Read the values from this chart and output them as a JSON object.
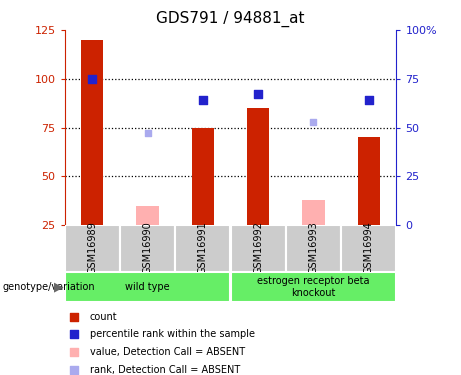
{
  "title": "GDS791 / 94881_at",
  "samples": [
    "GSM16989",
    "GSM16990",
    "GSM16991",
    "GSM16992",
    "GSM16993",
    "GSM16994"
  ],
  "red_bars": [
    120,
    null,
    75,
    85,
    null,
    70
  ],
  "pink_bars": [
    null,
    35,
    null,
    null,
    38,
    null
  ],
  "blue_squares_left": [
    100,
    null,
    89,
    92,
    null,
    89
  ],
  "lightblue_squares_left": [
    null,
    72,
    null,
    null,
    78,
    null
  ],
  "ylim_left": [
    25,
    125
  ],
  "ylim_right": [
    0,
    100
  ],
  "yticks_left": [
    25,
    50,
    75,
    100,
    125
  ],
  "yticks_right": [
    0,
    25,
    50,
    75,
    100
  ],
  "ytick_labels_right": [
    "0",
    "25",
    "50",
    "75",
    "100%"
  ],
  "groups": [
    {
      "label": "wild type",
      "cols": [
        0,
        1,
        2
      ]
    },
    {
      "label": "estrogen receptor beta\nknockout",
      "cols": [
        3,
        4,
        5
      ]
    }
  ],
  "bar_width": 0.4,
  "red_color": "#cc2200",
  "pink_color": "#ffb0b0",
  "blue_color": "#2222cc",
  "lightblue_color": "#aaaaee",
  "sample_bg_color": "#cccccc",
  "group_bg_color": "#66ee66",
  "legend_items": [
    {
      "label": "count",
      "color": "#cc2200"
    },
    {
      "label": "percentile rank within the sample",
      "color": "#2222cc"
    },
    {
      "label": "value, Detection Call = ABSENT",
      "color": "#ffb0b0"
    },
    {
      "label": "rank, Detection Call = ABSENT",
      "color": "#aaaaee"
    }
  ],
  "left_spine_color": "#cc2200",
  "right_spine_color": "#2222cc"
}
